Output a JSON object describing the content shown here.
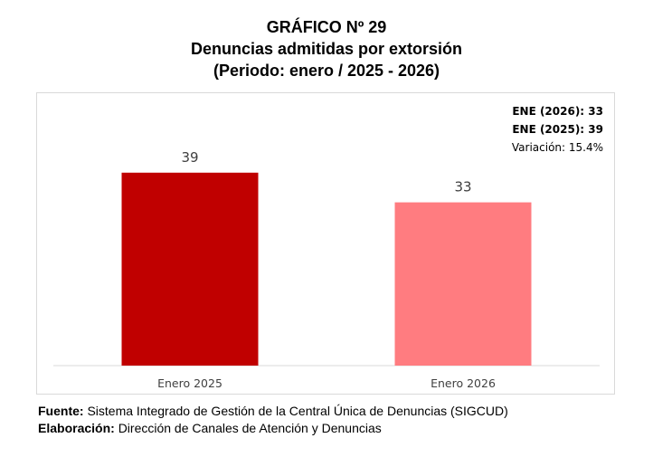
{
  "title": {
    "line1": "GRÁFICO Nº 29",
    "line2": "Denuncias admitidas por extorsión",
    "line3": "(Periodo: enero / 2025 - 2026)"
  },
  "notes": {
    "ene_2026": "ENE (2026): 33",
    "ene_2025": "ENE (2025): 39",
    "variacion": "Variación: 15.4%"
  },
  "chart_data": {
    "type": "bar",
    "title": "Denuncias admitidas por extorsión",
    "categories": [
      "Enero 2025",
      "Enero 2026"
    ],
    "values": [
      39,
      33
    ],
    "colors": [
      "#c00000",
      "#ff7c80"
    ],
    "data_labels": [
      "39",
      "33"
    ],
    "xlabel": "",
    "ylabel": "",
    "ylim": [
      0,
      45
    ],
    "grid": false
  },
  "footer": {
    "source_label": "Fuente:",
    "source_text": "Sistema Integrado de Gestión de la Central Única de Denuncias (SIGCUD)",
    "elab_label": "Elaboración:",
    "elab_text": "Dirección de Canales de Atención y Denuncias"
  }
}
